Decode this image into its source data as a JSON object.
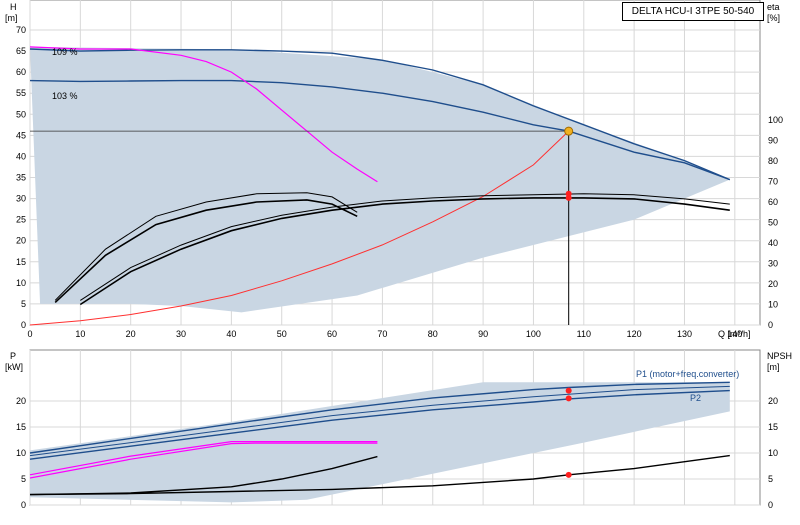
{
  "title": "DELTA HCU-I 3TPE 50-540",
  "top": {
    "y_label": "H",
    "y_unit": "[m]",
    "y2_label": "eta",
    "y2_unit": "[%]",
    "x_label": "Q [m³/h]",
    "curve_label_max": "109 %",
    "curve_label_nom": "103 %"
  },
  "bottom": {
    "y_label": "P",
    "y_unit": "[kW]",
    "y2_label": "NPSH",
    "y2_unit": "[m]",
    "label_p1": "P1 (motor+freq.converter)",
    "label_p2": "P2"
  },
  "colors": {
    "hydraulic": "#1f4e8c",
    "speed": "#ff00ff",
    "system": "#ff3030",
    "eta": "#000000",
    "area": "#c9d6e3",
    "marker": "#ff2020",
    "duty": "#f0b020"
  },
  "chart_data": [
    {
      "type": "line",
      "title": "DELTA HCU-I 3TPE 50-540",
      "xlabel": "Q [m³/h]",
      "ylabel": "H [m]",
      "y2label": "eta [%]",
      "xlim": [
        0,
        140
      ],
      "ylim": [
        0,
        70
      ],
      "y2lim": [
        0,
        100
      ],
      "x_ticks": [
        0,
        10,
        20,
        30,
        40,
        50,
        60,
        70,
        80,
        90,
        100,
        110,
        120,
        130,
        140
      ],
      "y_ticks": [
        0,
        5,
        10,
        15,
        20,
        25,
        30,
        35,
        40,
        45,
        50,
        55,
        60,
        65,
        70
      ],
      "y2_ticks": [
        0,
        10,
        20,
        30,
        40,
        50,
        60,
        70,
        80,
        90,
        100
      ],
      "grid": true,
      "operating_point": {
        "q": 107,
        "h": 46
      },
      "series": [
        {
          "name": "109 %",
          "axis": "H",
          "points": [
            [
              0,
              65.5
            ],
            [
              10,
              65
            ],
            [
              20,
              65.2
            ],
            [
              30,
              65.3
            ],
            [
              40,
              65.3
            ],
            [
              50,
              65
            ],
            [
              60,
              64.5
            ],
            [
              70,
              62.8
            ],
            [
              80,
              60.5
            ],
            [
              90,
              57
            ],
            [
              100,
              52
            ],
            [
              110,
              47.5
            ],
            [
              120,
              43
            ],
            [
              130,
              39
            ],
            [
              139,
              34.5
            ]
          ]
        },
        {
          "name": "103 %",
          "axis": "H",
          "points": [
            [
              0,
              58
            ],
            [
              10,
              57.8
            ],
            [
              20,
              57.9
            ],
            [
              30,
              58
            ],
            [
              40,
              58
            ],
            [
              50,
              57.5
            ],
            [
              60,
              56.5
            ],
            [
              70,
              55
            ],
            [
              80,
              53
            ],
            [
              90,
              50.5
            ],
            [
              100,
              47.5
            ],
            [
              107,
              46
            ],
            [
              120,
              41
            ],
            [
              130,
              38.5
            ],
            [
              139,
              34.5
            ]
          ]
        },
        {
          "axis": "H",
          "points": [
            [
              0,
              66
            ],
            [
              10,
              65.5
            ],
            [
              20,
              65.5
            ],
            [
              30,
              64
            ],
            [
              35,
              62.5
            ],
            [
              40,
              60
            ],
            [
              45,
              56
            ],
            [
              50,
              51
            ],
            [
              55,
              46
            ],
            [
              60,
              41
            ],
            [
              65,
              37
            ],
            [
              69,
              34
            ]
          ]
        },
        {
          "axis": "H",
          "points": [
            [
              0,
              0
            ],
            [
              10,
              1
            ],
            [
              20,
              2.5
            ],
            [
              30,
              4.5
            ],
            [
              40,
              7
            ],
            [
              50,
              10.5
            ],
            [
              60,
              14.5
            ],
            [
              70,
              19
            ],
            [
              80,
              24.5
            ],
            [
              90,
              30.5
            ],
            [
              100,
              38
            ],
            [
              107,
              46
            ]
          ]
        },
        {
          "axis": "eta",
          "points": [
            [
              10,
              10
            ],
            [
              20,
              26
            ],
            [
              30,
              37
            ],
            [
              40,
              46
            ],
            [
              50,
              52
            ],
            [
              60,
              56
            ],
            [
              70,
              59
            ],
            [
              80,
              60.5
            ],
            [
              90,
              61.5
            ],
            [
              100,
              62
            ],
            [
              110,
              62
            ],
            [
              120,
              61.5
            ],
            [
              130,
              59
            ],
            [
              139,
              56
            ]
          ]
        },
        {
          "axis": "eta",
          "points": [
            [
              10,
              12
            ],
            [
              20,
              28
            ],
            [
              30,
              39
            ],
            [
              40,
              48
            ],
            [
              50,
              53.5
            ],
            [
              60,
              57.5
            ],
            [
              70,
              60.5
            ],
            [
              80,
              62
            ],
            [
              90,
              63
            ],
            [
              100,
              63.5
            ],
            [
              110,
              64
            ],
            [
              120,
              63.5
            ],
            [
              130,
              61.5
            ],
            [
              139,
              59
            ]
          ]
        },
        {
          "axis": "eta",
          "points": [
            [
              5,
              11
            ],
            [
              15,
              34
            ],
            [
              25,
              49
            ],
            [
              35,
              56
            ],
            [
              45,
              60
            ],
            [
              55,
              61
            ],
            [
              60,
              59
            ],
            [
              65,
              53
            ]
          ]
        },
        {
          "axis": "eta",
          "points": [
            [
              5,
              12
            ],
            [
              15,
              37
            ],
            [
              25,
              53
            ],
            [
              35,
              60
            ],
            [
              45,
              64
            ],
            [
              55,
              64.5
            ],
            [
              60,
              62.5
            ],
            [
              65,
              55
            ]
          ]
        }
      ]
    },
    {
      "type": "line",
      "xlabel": "Q [m³/h]",
      "ylabel": "P [kW]",
      "y2label": "NPSH [m]",
      "xlim": [
        0,
        140
      ],
      "ylim": [
        0,
        25
      ],
      "y2lim": [
        0,
        25
      ],
      "y_ticks": [
        0,
        5,
        10,
        15,
        20
      ],
      "y2_ticks": [
        0,
        5,
        10,
        15,
        20
      ],
      "grid": true,
      "operating_point": {
        "q": 107,
        "p1": 22,
        "p2": 20.5,
        "npsh": 5.8
      },
      "series": [
        {
          "name": "P1 (motor+freq.converter)",
          "axis": "P",
          "points": [
            [
              0,
              10
            ],
            [
              20,
              12.8
            ],
            [
              40,
              15.6
            ],
            [
              60,
              18.3
            ],
            [
              80,
              20.6
            ],
            [
              100,
              22.2
            ],
            [
              107,
              22.6
            ],
            [
              120,
              23.2
            ],
            [
              139,
              23.6
            ]
          ]
        },
        {
          "axis": "P",
          "points": [
            [
              0,
              9.5
            ],
            [
              20,
              12
            ],
            [
              40,
              14.6
            ],
            [
              60,
              17.2
            ],
            [
              80,
              19.2
            ],
            [
              100,
              20.8
            ],
            [
              120,
              22.2
            ],
            [
              139,
              22.8
            ]
          ]
        },
        {
          "name": "P2",
          "axis": "P",
          "points": [
            [
              0,
              8.8
            ],
            [
              20,
              11.3
            ],
            [
              40,
              13.8
            ],
            [
              60,
              16.3
            ],
            [
              80,
              18.3
            ],
            [
              100,
              19.8
            ],
            [
              107,
              20.4
            ],
            [
              120,
              21.2
            ],
            [
              139,
              22
            ]
          ]
        },
        {
          "axis": "P",
          "points": [
            [
              0,
              5.2
            ],
            [
              20,
              8.8
            ],
            [
              40,
              11.8
            ],
            [
              45,
              11.9
            ],
            [
              69,
              11.9
            ]
          ]
        },
        {
          "axis": "P",
          "points": [
            [
              0,
              5.8
            ],
            [
              20,
              9.4
            ],
            [
              40,
              12.2
            ],
            [
              45,
              12.2
            ],
            [
              69,
              12.2
            ]
          ]
        },
        {
          "axis": "NPSH",
          "points": [
            [
              0,
              2
            ],
            [
              20,
              2.2
            ],
            [
              40,
              2.6
            ],
            [
              60,
              3
            ],
            [
              80,
              3.7
            ],
            [
              100,
              5
            ],
            [
              107,
              5.8
            ],
            [
              120,
              7
            ],
            [
              139,
              9.5
            ]
          ]
        },
        {
          "axis": "NPSH",
          "points": [
            [
              0,
              2
            ],
            [
              20,
              2.3
            ],
            [
              40,
              3.5
            ],
            [
              50,
              5
            ],
            [
              60,
              7
            ],
            [
              69,
              9.3
            ]
          ]
        }
      ]
    }
  ]
}
